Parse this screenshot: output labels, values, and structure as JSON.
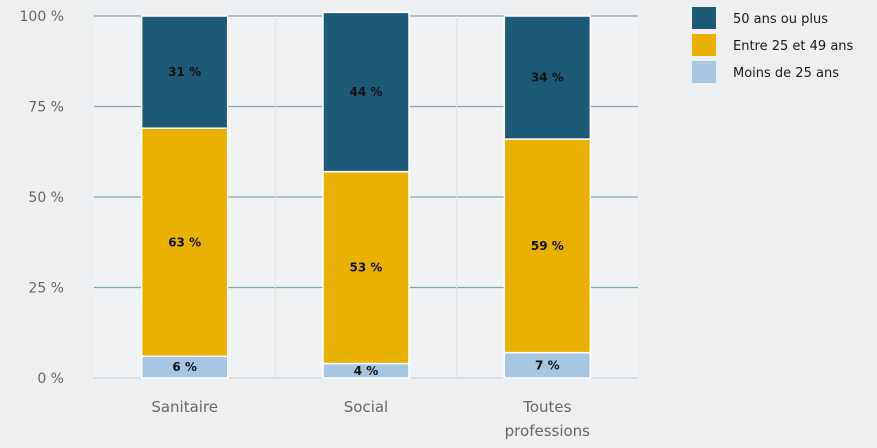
{
  "chart_data": {
    "type": "bar",
    "stacked": true,
    "categories": [
      [
        "Sanitaire"
      ],
      [
        "Social"
      ],
      [
        "Toutes",
        "professions"
      ]
    ],
    "ylim": [
      0,
      100
    ],
    "yticks": [
      0,
      25,
      50,
      75,
      100
    ],
    "ytick_labels": [
      "0 %",
      "25 %",
      "50 %",
      "75 %",
      "100 %"
    ],
    "grid": true,
    "legend_position": "top-right",
    "series": [
      {
        "name": "Moins de 25 ans",
        "color": "#a7c6e2",
        "values": [
          6,
          4,
          7
        ],
        "labels": [
          "6 %",
          "4 %",
          "7 %"
        ]
      },
      {
        "name": "Entre 25 et 49 ans",
        "color": "#e9b200",
        "values": [
          63,
          53,
          59
        ],
        "labels": [
          "63 %",
          "53 %",
          "59 %"
        ]
      },
      {
        "name": "50 ans ou plus",
        "color": "#1e5a78",
        "values": [
          31,
          44,
          34
        ],
        "labels": [
          "31 %",
          "44 %",
          "34 %"
        ]
      }
    ],
    "legend_order": [
      2,
      1,
      0
    ]
  }
}
